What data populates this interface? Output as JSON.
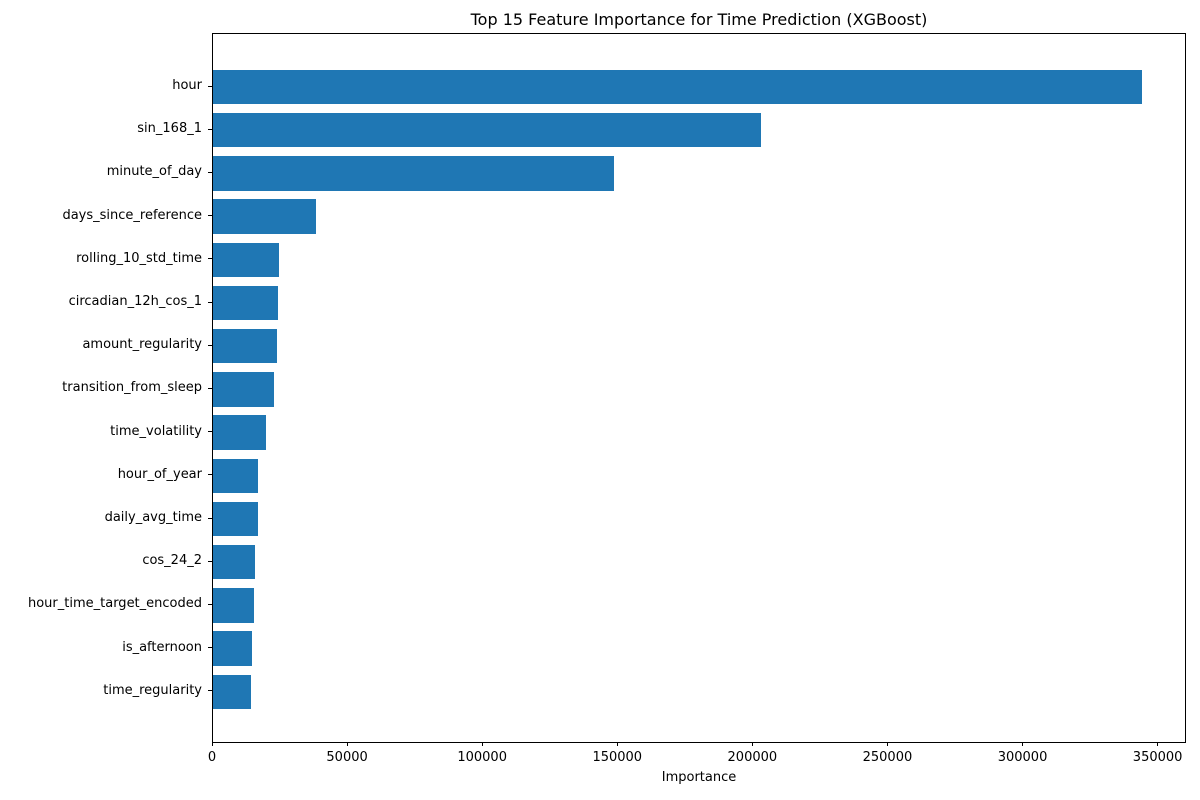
{
  "chart_data": {
    "type": "bar",
    "orientation": "horizontal",
    "title": "Top 15 Feature Importance for Time Prediction (XGBoost)",
    "xlabel": "Importance",
    "ylabel": "",
    "categories": [
      "hour",
      "sin_168_1",
      "minute_of_day",
      "days_since_reference",
      "rolling_10_std_time",
      "circadian_12h_cos_1",
      "amount_regularity",
      "transition_from_sleep",
      "time_volatility",
      "hour_of_year",
      "daily_avg_time",
      "cos_24_2",
      "hour_time_target_encoded",
      "is_afternoon",
      "time_regularity"
    ],
    "values": [
      344000,
      203000,
      148300,
      38100,
      24500,
      24200,
      23700,
      22700,
      19700,
      16800,
      16500,
      15400,
      15300,
      14400,
      14000
    ],
    "xticks": [
      0,
      50000,
      100000,
      150000,
      200000,
      250000,
      300000,
      350000
    ],
    "xlim": [
      0,
      360500
    ],
    "bar_color": "#1f77b4",
    "grid": false,
    "legend": null
  }
}
